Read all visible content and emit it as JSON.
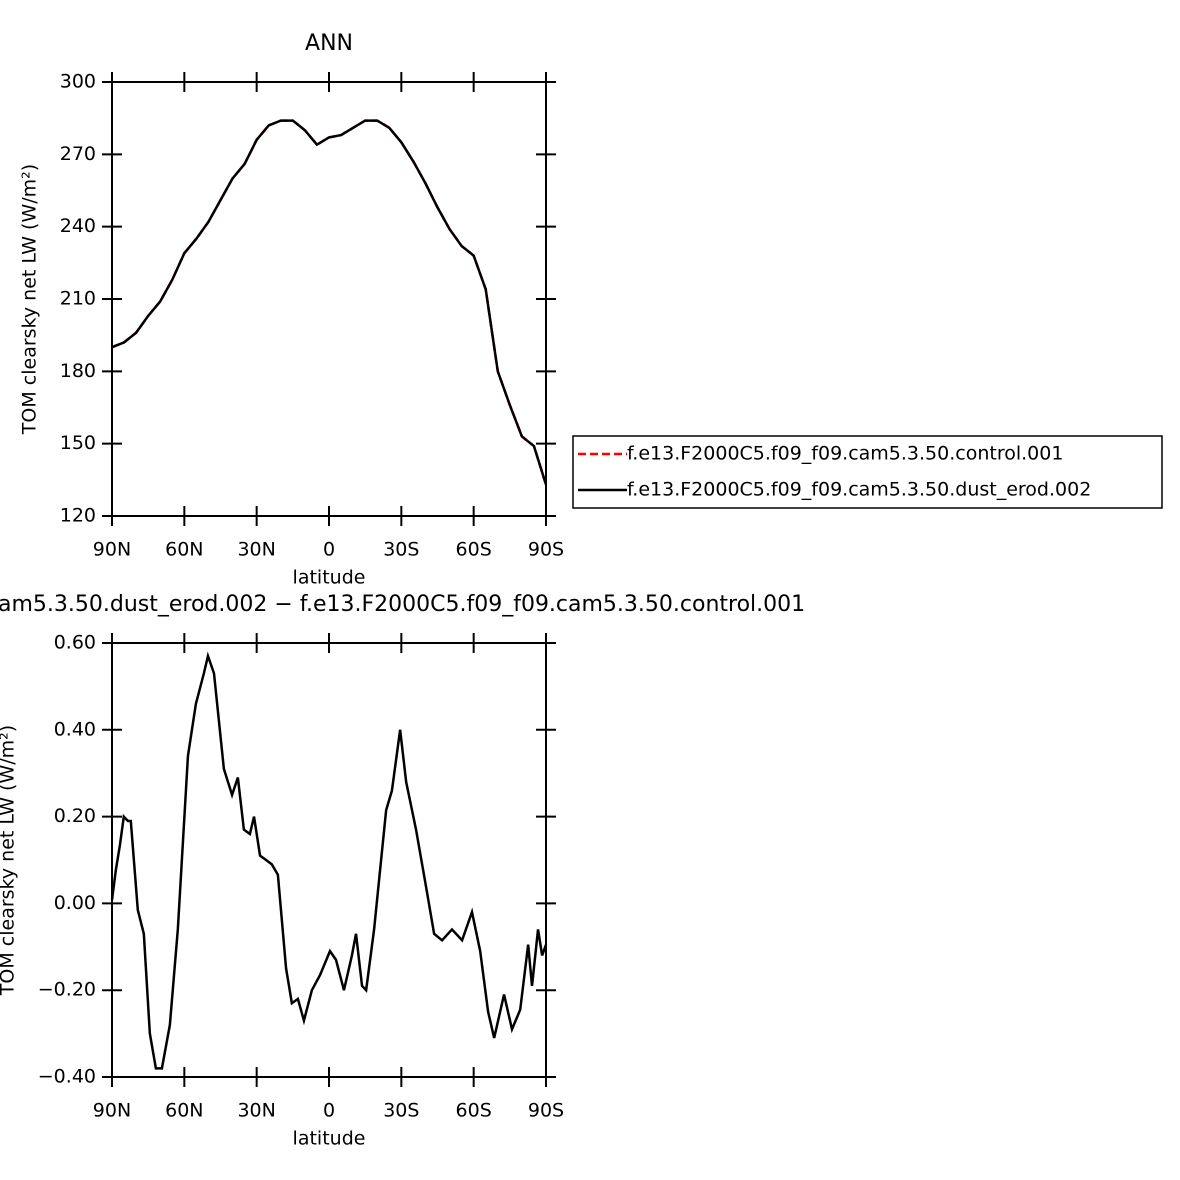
{
  "chart_data": [
    {
      "type": "line",
      "title": "ANN",
      "xlabel": "latitude",
      "ylabel": "TOM clearsky net LW (W/m²)",
      "x": [
        90,
        85,
        80,
        75,
        70,
        65,
        60,
        55,
        50,
        45,
        40,
        35,
        30,
        25,
        20,
        15,
        10,
        5,
        0,
        -5,
        -10,
        -15,
        -20,
        -25,
        -30,
        -35,
        -40,
        -45,
        -50,
        -55,
        -60,
        -65,
        -70,
        -75,
        -80,
        -85,
        -90
      ],
      "series": [
        {
          "name": "f.e13.F2000C5.f09_f09.cam5.3.50.control.001",
          "color": "#ff0000",
          "linestyle": "dashed",
          "values": [
            190,
            192,
            196,
            203,
            209,
            218,
            229,
            235,
            242,
            251,
            260,
            266,
            276,
            282,
            284,
            284,
            280,
            274,
            277,
            278,
            281,
            284,
            284,
            281,
            275,
            267,
            258,
            248,
            239,
            232,
            228,
            214,
            180,
            166,
            153,
            149,
            133
          ]
        },
        {
          "name": "f.e13.F2000C5.f09_f09.cam5.3.50.dust_erod.002",
          "color": "#000000",
          "linestyle": "solid",
          "values": [
            190,
            192,
            196,
            203,
            209,
            218,
            229,
            235,
            242,
            251,
            260,
            266,
            276,
            282,
            284,
            284,
            280,
            274,
            277,
            278,
            281,
            284,
            284,
            281,
            275,
            267,
            258,
            248,
            239,
            232,
            228,
            214,
            180,
            166,
            153,
            149,
            133
          ]
        }
      ],
      "xlim": [
        90,
        -90
      ],
      "xticks": [
        {
          "value": 90,
          "label": "90N"
        },
        {
          "value": 60,
          "label": "60N"
        },
        {
          "value": 30,
          "label": "30N"
        },
        0,
        {
          "value": -30,
          "label": "30S"
        },
        {
          "value": -60,
          "label": "60S"
        },
        {
          "value": -90,
          "label": "90S"
        }
      ],
      "ylim": [
        120,
        300
      ],
      "yticks": [
        120,
        150,
        180,
        210,
        240,
        270,
        300
      ],
      "legend": "right"
    },
    {
      "type": "line",
      "title": "am5.3.50.dust_erod.002 − f.e13.F2000C5.f09_f09.cam5.3.50.control.001",
      "xlabel": "latitude",
      "ylabel": "TOM clearsky net LW (W/m²)",
      "x": [
        90,
        88.4,
        86.7,
        85.1,
        83.4,
        82.2,
        79.3,
        76.8,
        74.3,
        71.8,
        69.3,
        66,
        62.7,
        58.5,
        55.2,
        51.9,
        50.2,
        47.7,
        43.6,
        40.2,
        37.8,
        35.3,
        32.8,
        31.1,
        28.6,
        26.1,
        23.7,
        21.2,
        17.8,
        15.4,
        12.9,
        10.4,
        7.1,
        3.7,
        -0.4,
        -2.9,
        -6.2,
        -9.5,
        -11.2,
        -13.7,
        -15.4,
        -18.7,
        -23.7,
        -26.1,
        -29.5,
        -32,
        -36.1,
        -40.2,
        -43.6,
        -46.9,
        -51,
        -55.2,
        -59.3,
        -62.7,
        -66,
        -68.5,
        -72.6,
        -75.9,
        -79.3,
        -82.6,
        -84.2,
        -86.7,
        -88.4,
        -90
      ],
      "values": [
        0.008,
        0.077,
        0.135,
        0.2,
        0.19,
        0.19,
        -0.015,
        -0.07,
        -0.3,
        -0.38,
        -0.38,
        -0.28,
        -0.06,
        0.34,
        0.46,
        0.53,
        0.57,
        0.53,
        0.31,
        0.25,
        0.29,
        0.17,
        0.16,
        0.2,
        0.11,
        0.1,
        0.09,
        0.066,
        -0.15,
        -0.23,
        -0.22,
        -0.27,
        -0.2,
        -0.165,
        -0.11,
        -0.13,
        -0.2,
        -0.12,
        -0.07,
        -0.19,
        -0.2,
        -0.06,
        0.215,
        0.26,
        0.4,
        0.28,
        0.17,
        0.04,
        -0.07,
        -0.085,
        -0.06,
        -0.085,
        -0.02,
        -0.11,
        -0.25,
        -0.31,
        -0.21,
        -0.29,
        -0.245,
        -0.095,
        -0.19,
        -0.06,
        -0.12,
        -0.095
      ],
      "color": "#000000",
      "xlim": [
        90,
        -90
      ],
      "xticks": [
        {
          "value": 90,
          "label": "90N"
        },
        {
          "value": 60,
          "label": "60N"
        },
        {
          "value": 30,
          "label": "30N"
        },
        0,
        {
          "value": -30,
          "label": "30S"
        },
        {
          "value": -60,
          "label": "60S"
        },
        {
          "value": -90,
          "label": "90S"
        }
      ],
      "ylim": [
        -0.4,
        0.6
      ],
      "yticks": [
        {
          "value": -0.4,
          "label": "−0.40"
        },
        {
          "value": -0.2,
          "label": "−0.20"
        },
        {
          "value": 0,
          "label": "0.00"
        },
        {
          "value": 0.2,
          "label": "0.20"
        },
        {
          "value": 0.4,
          "label": "0.40"
        },
        {
          "value": 0.6,
          "label": "0.60"
        }
      ]
    }
  ]
}
